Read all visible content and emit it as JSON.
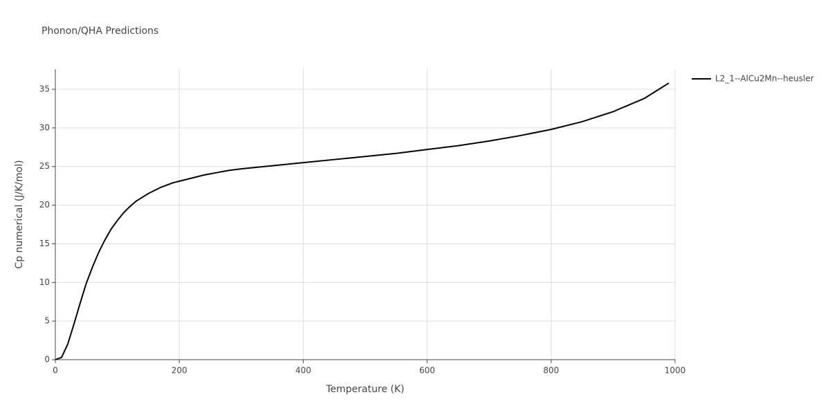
{
  "chart_data": {
    "type": "line",
    "title": "Phonon/QHA Predictions",
    "x_label": "Temperature (K)",
    "y_label": "Cp numerical (J/K/mol)",
    "x": [
      0,
      10,
      20,
      30,
      40,
      50,
      60,
      70,
      80,
      90,
      100,
      110,
      120,
      130,
      140,
      150,
      160,
      170,
      180,
      190,
      200,
      220,
      240,
      260,
      280,
      300,
      350,
      400,
      450,
      500,
      550,
      600,
      650,
      700,
      750,
      800,
      850,
      900,
      950,
      990
    ],
    "series": [
      {
        "name": "L2_1--AlCu2Mn--heusler",
        "color": "#000000",
        "values": [
          0,
          0.3,
          2.0,
          4.6,
          7.3,
          9.9,
          12.0,
          13.9,
          15.5,
          16.9,
          18.0,
          19.0,
          19.8,
          20.5,
          21.0,
          21.5,
          21.9,
          22.3,
          22.6,
          22.9,
          23.1,
          23.5,
          23.9,
          24.2,
          24.5,
          24.7,
          25.1,
          25.5,
          25.9,
          26.3,
          26.7,
          27.2,
          27.7,
          28.3,
          29.0,
          29.8,
          30.8,
          32.1,
          33.8,
          35.8
        ]
      }
    ],
    "xlim": [
      0,
      1000
    ],
    "xticks": [
      0,
      200,
      400,
      600,
      800,
      1000
    ],
    "ylim": [
      0,
      37.6
    ],
    "yticks": [
      0,
      5,
      10,
      15,
      20,
      25,
      30,
      35
    ],
    "grid": true,
    "legend": "right"
  }
}
